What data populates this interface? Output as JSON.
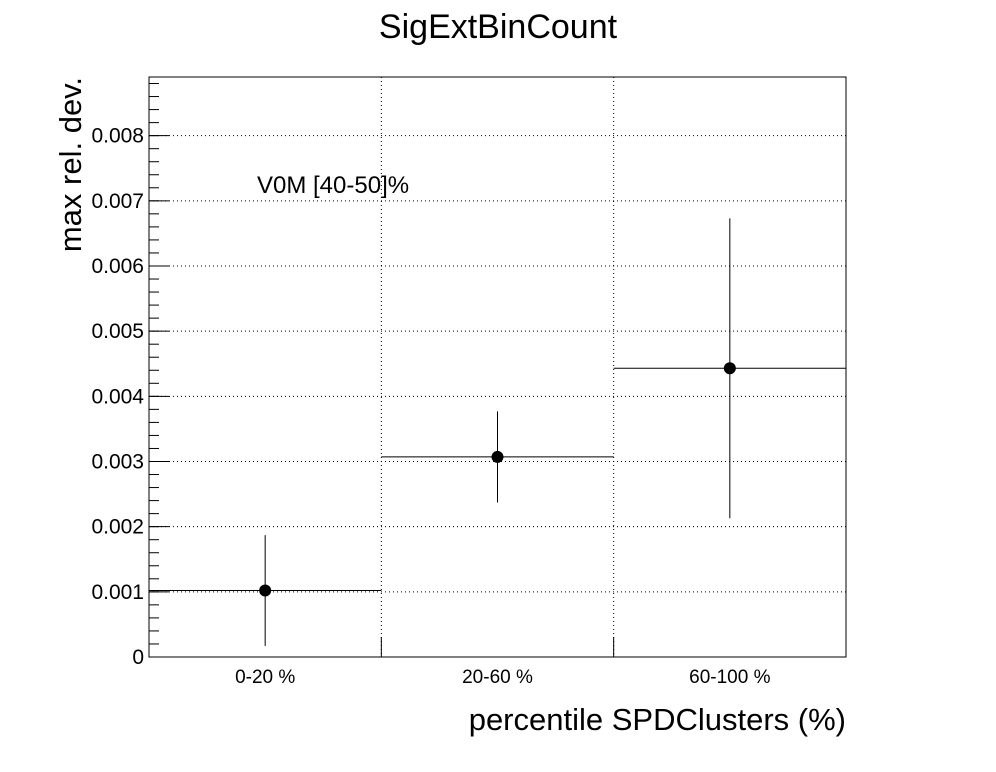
{
  "chart_data": {
    "type": "scatter",
    "title": "SigExtBinCount",
    "xlabel": "percentile SPDClusters (%)",
    "ylabel": "max rel. dev.",
    "annotation": "V0M [40-50]%",
    "categories": [
      "0-20 %",
      "20-60 %",
      "60-100 %"
    ],
    "ylim": [
      0,
      0.0089
    ],
    "yticks": [
      "0",
      "0.001",
      "0.002",
      "0.003",
      "0.004",
      "0.005",
      "0.006",
      "0.007",
      "0.008"
    ],
    "grid": true,
    "series": [
      {
        "values": [
          0.00102,
          0.00307,
          0.00443
        ],
        "errors": [
          0.00085,
          0.0007,
          0.0023
        ]
      }
    ]
  }
}
